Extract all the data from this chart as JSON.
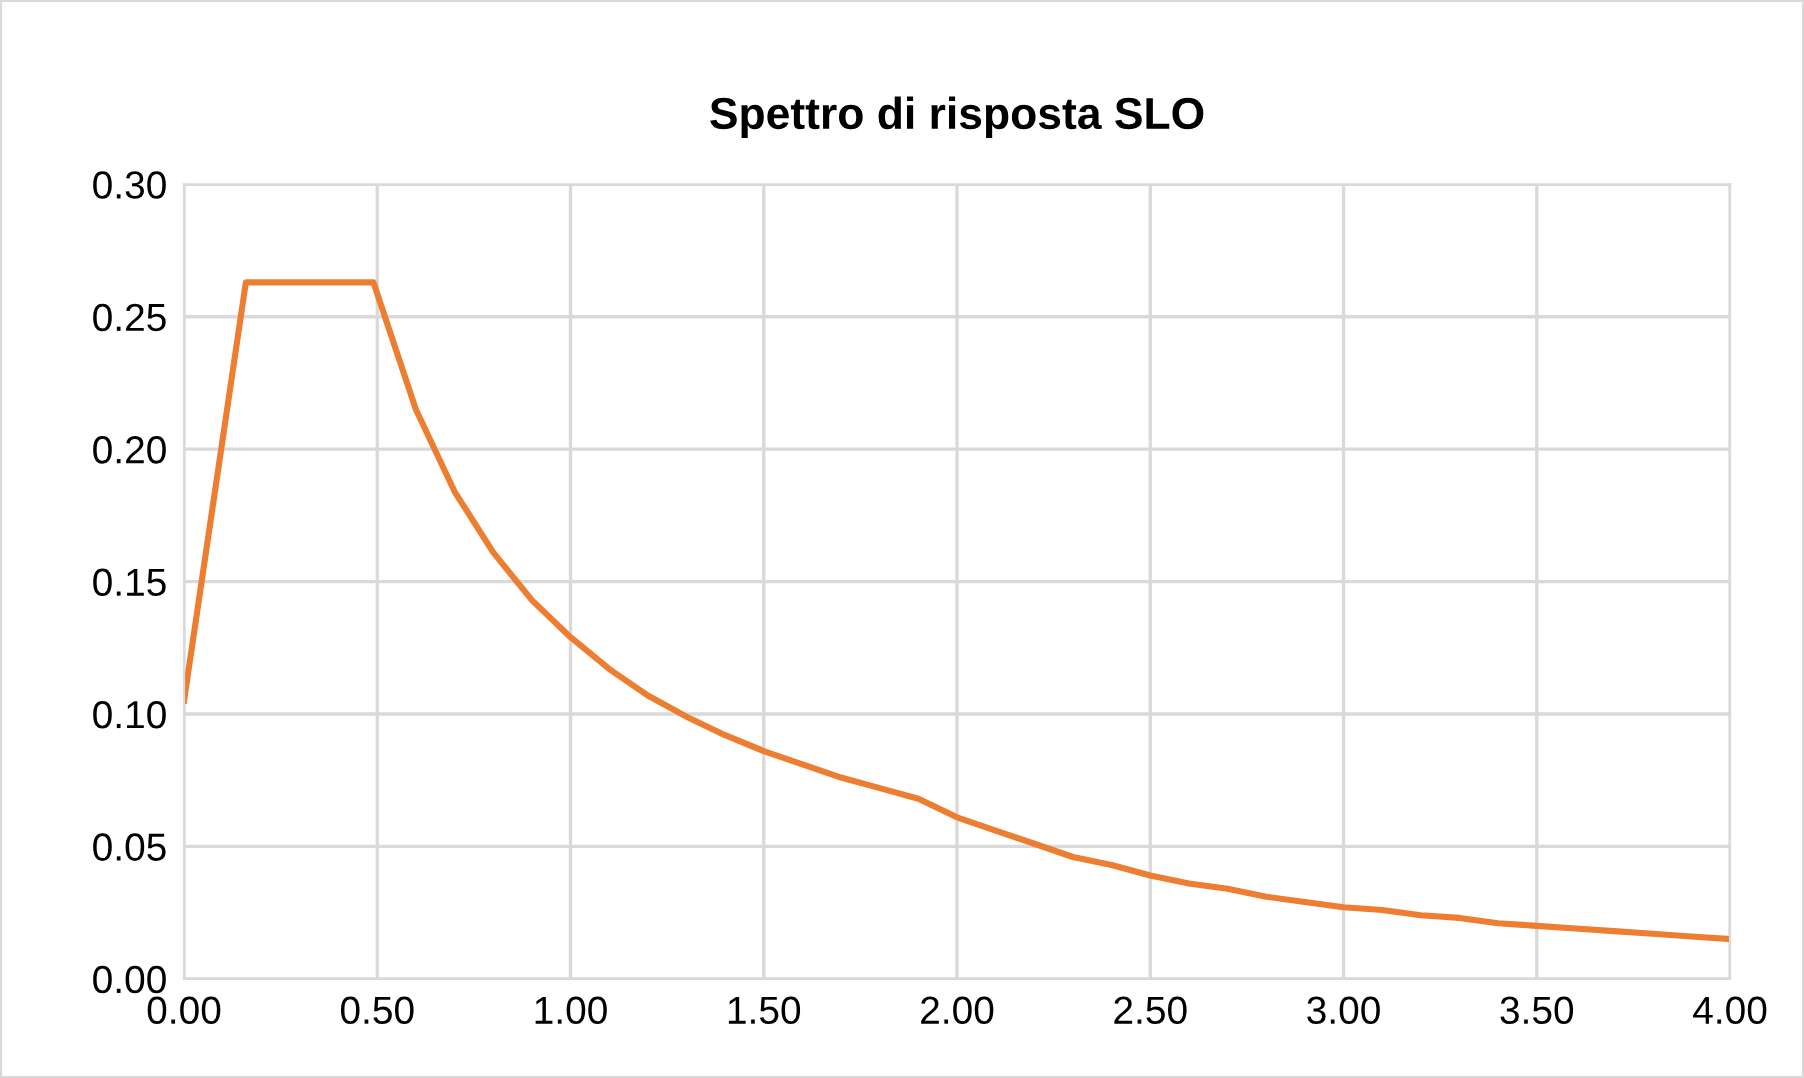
{
  "chart_data": {
    "type": "line",
    "title": "Spettro di risposta SLO",
    "x": [
      0,
      0.16,
      0.49,
      0.6,
      0.7,
      0.8,
      0.9,
      1.0,
      1.1,
      1.2,
      1.3,
      1.4,
      1.5,
      1.6,
      1.7,
      1.8,
      1.9,
      2.0,
      2.1,
      2.2,
      2.3,
      2.4,
      2.5,
      2.6,
      2.7,
      2.8,
      2.9,
      3.0,
      3.1,
      3.2,
      3.3,
      3.4,
      3.5,
      3.6,
      3.7,
      3.8,
      3.9,
      4.0
    ],
    "series": [
      {
        "color": "#ed7d31",
        "values": [
          0.105,
          0.263,
          0.263,
          0.215,
          0.184,
          0.161,
          0.143,
          0.129,
          0.117,
          0.107,
          0.099,
          0.092,
          0.086,
          0.081,
          0.076,
          0.072,
          0.068,
          0.061,
          0.056,
          0.051,
          0.046,
          0.043,
          0.039,
          0.036,
          0.034,
          0.031,
          0.029,
          0.027,
          0.026,
          0.024,
          0.023,
          0.021,
          0.02,
          0.019,
          0.018,
          0.017,
          0.016,
          0.015
        ]
      }
    ],
    "xlim": [
      0,
      4
    ],
    "xticks": [
      {
        "value": 0,
        "label": "0.00"
      },
      {
        "value": 0.5,
        "label": "0.50"
      },
      {
        "value": 1,
        "label": "1.00"
      },
      {
        "value": 1.5,
        "label": "1.50"
      },
      {
        "value": 2,
        "label": "2.00"
      },
      {
        "value": 2.5,
        "label": "2.50"
      },
      {
        "value": 3,
        "label": "3.00"
      },
      {
        "value": 3.5,
        "label": "3.50"
      },
      {
        "value": 4,
        "label": "4.00"
      }
    ],
    "ylim": [
      0,
      0.3
    ],
    "yticks": [
      {
        "value": 0,
        "label": "0.00"
      },
      {
        "value": 0.05,
        "label": "0.05"
      },
      {
        "value": 0.1,
        "label": "0.10"
      },
      {
        "value": 0.15,
        "label": "0.15"
      },
      {
        "value": 0.2,
        "label": "0.20"
      },
      {
        "value": 0.25,
        "label": "0.25"
      },
      {
        "value": 0.3,
        "label": "0.30"
      }
    ],
    "grid": true,
    "legend": false
  }
}
